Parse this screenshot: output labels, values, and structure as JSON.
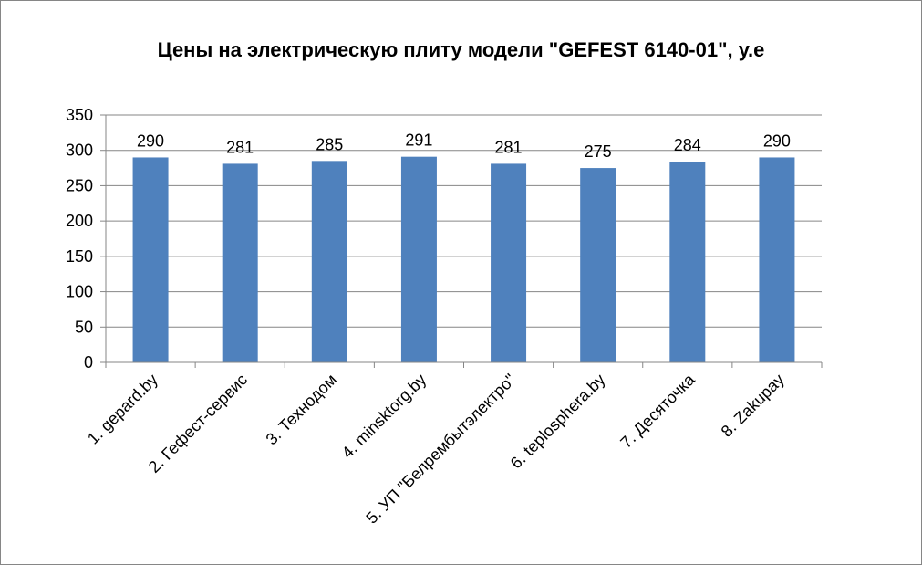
{
  "chart_data": {
    "type": "bar",
    "title": "Цены на электрическую плиту модели \"GEFEST 6140-01\", у.е",
    "xlabel": "",
    "ylabel": "",
    "categories": [
      "1. gepard.by",
      "2. Гефест-сервис",
      "3. Технодом",
      "4. minsktorg.by",
      "5. УП \"Белрембытэлектро\"",
      "6. teplosphera.by",
      "7. Десяточка",
      "8. Zakupay"
    ],
    "values": [
      290,
      281,
      285,
      291,
      281,
      275,
      284,
      290
    ],
    "ylim": [
      0,
      350
    ],
    "yticks": [
      0,
      50,
      100,
      150,
      200,
      250,
      300,
      350
    ],
    "grid": true,
    "legend": "none",
    "bar_color": "#4F81BD",
    "grid_color": "#868686"
  }
}
